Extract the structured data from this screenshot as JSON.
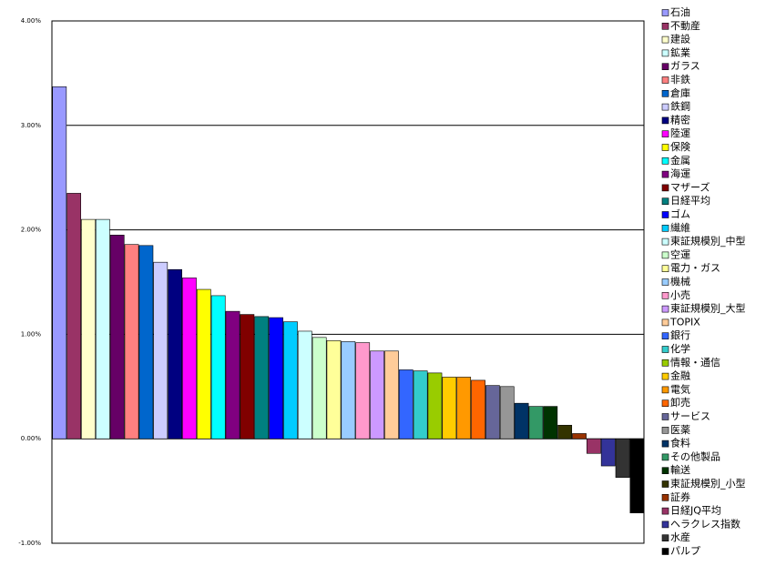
{
  "chart_data": {
    "type": "bar",
    "categories": [
      "石油",
      "不動産",
      "建設",
      "鉱業",
      "ガラス",
      "非鉄",
      "倉庫",
      "鉄鋼",
      "精密",
      "陸運",
      "保険",
      "金属",
      "海運",
      "マザーズ",
      "日経平均",
      "ゴム",
      "繊維",
      "東証規模別_中型",
      "空運",
      "電力・ガス",
      "機械",
      "小売",
      "東証規模別_大型",
      "TOPIX",
      "銀行",
      "化学",
      "情報・通信",
      "金融",
      "電気",
      "卸売",
      "サービス",
      "医薬",
      "食料",
      "その他製品",
      "輸送",
      "東証規模別_小型",
      "証券",
      "日経JQ平均",
      "ヘラクレス指数",
      "水産",
      "パルプ"
    ],
    "values": [
      3.37,
      2.35,
      2.1,
      2.1,
      1.95,
      1.86,
      1.85,
      1.69,
      1.62,
      1.54,
      1.43,
      1.37,
      1.22,
      1.19,
      1.17,
      1.16,
      1.12,
      1.03,
      0.97,
      0.94,
      0.93,
      0.92,
      0.84,
      0.84,
      0.66,
      0.65,
      0.63,
      0.59,
      0.59,
      0.56,
      0.51,
      0.5,
      0.34,
      0.31,
      0.31,
      0.13,
      0.05,
      -0.14,
      -0.26,
      -0.37,
      -0.71
    ],
    "colors": [
      "#9999ff",
      "#993366",
      "#ffffcc",
      "#ccffff",
      "#660066",
      "#ff8080",
      "#0066cc",
      "#ccccff",
      "#000080",
      "#ff00ff",
      "#ffff00",
      "#00ffff",
      "#800080",
      "#800000",
      "#008080",
      "#0000ff",
      "#00ccff",
      "#ccffff",
      "#ccffcc",
      "#ffff99",
      "#99ccff",
      "#ff99cc",
      "#cc99ff",
      "#ffcc99",
      "#3366ff",
      "#33cccc",
      "#99cc00",
      "#ffcc00",
      "#ff9900",
      "#ff6600",
      "#666699",
      "#969696",
      "#003366",
      "#339966",
      "#003300",
      "#333300",
      "#993300",
      "#993366",
      "#333399",
      "#333333",
      "#000000"
    ],
    "ylim": [
      -1,
      4
    ],
    "yticks": [
      {
        "value": -1,
        "label": "-1.00%"
      },
      {
        "value": 0,
        "label": "0.00%"
      },
      {
        "value": 1,
        "label": "1.00%"
      },
      {
        "value": 2,
        "label": "2.00%"
      },
      {
        "value": 3,
        "label": "3.00%"
      },
      {
        "value": 4,
        "label": "4.00%"
      }
    ],
    "grid": true,
    "legend": "right"
  }
}
